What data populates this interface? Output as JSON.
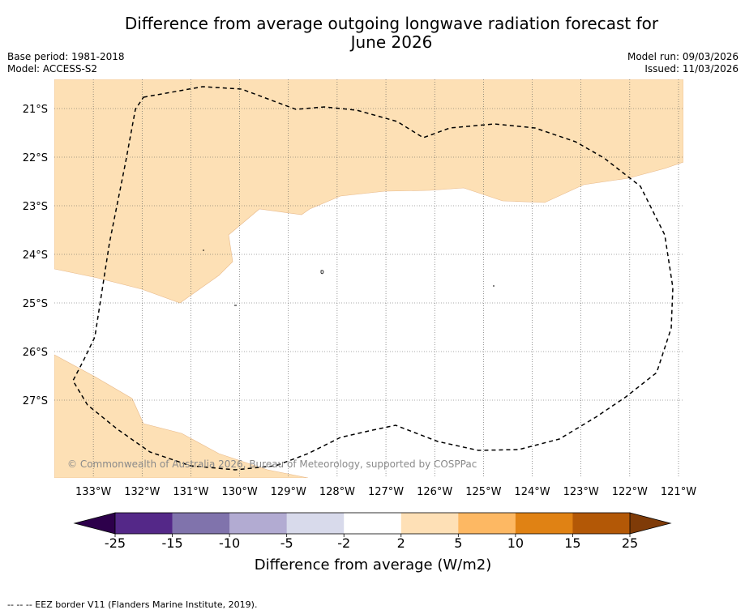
{
  "chart_data": {
    "type": "map",
    "title_line1": "Difference from average outgoing longwave radiation forecast for",
    "title_line2": "June 2026",
    "base_period": "Base period: 1981-2018",
    "model": "Model: ACCESS-S2",
    "model_run": "Model run: 09/03/2026",
    "issued": "Issued: 11/03/2026",
    "lon_ticks": [
      "133°W",
      "132°W",
      "131°W",
      "130°W",
      "129°W",
      "128°W",
      "127°W",
      "126°W",
      "125°W",
      "124°W",
      "123°W",
      "122°W",
      "121°W"
    ],
    "lon_values": [
      -133,
      -132,
      -131,
      -130,
      -129,
      -128,
      -127,
      -126,
      -125,
      -124,
      -123,
      -122,
      -121
    ],
    "lat_ticks": [
      "21°S",
      "22°S",
      "23°S",
      "24°S",
      "25°S",
      "26°S",
      "27°S"
    ],
    "lat_values": [
      -21,
      -22,
      -23,
      -24,
      -25,
      -26,
      -27
    ],
    "lon_range": [
      -133.8,
      -120.9
    ],
    "lat_range": [
      -28.6,
      -20.4
    ],
    "anomaly_colors": {
      "positive_2_to_5": "#fde0b5",
      "near_zero": "#ffffff"
    },
    "colorbar": {
      "label": "Difference from average (W/m2)",
      "ticks": [
        "-25",
        "-15",
        "-10",
        "-5",
        "-2",
        "2",
        "5",
        "10",
        "15",
        "25"
      ],
      "colors": [
        "#542888",
        "#8073ac",
        "#b2abd2",
        "#d8daeb",
        "#ffffff",
        "#fee0b6",
        "#fdb863",
        "#e08214",
        "#b35806"
      ],
      "under_color": "#2d004b",
      "over_color": "#7f3b08"
    },
    "copyright": "© Commonwealth of Australia 2026, Bureau of Meteorology, supported by COSPPac",
    "footer": "--  --  -- EEZ border V11 (Flanders Marine Institute, 2019)."
  }
}
